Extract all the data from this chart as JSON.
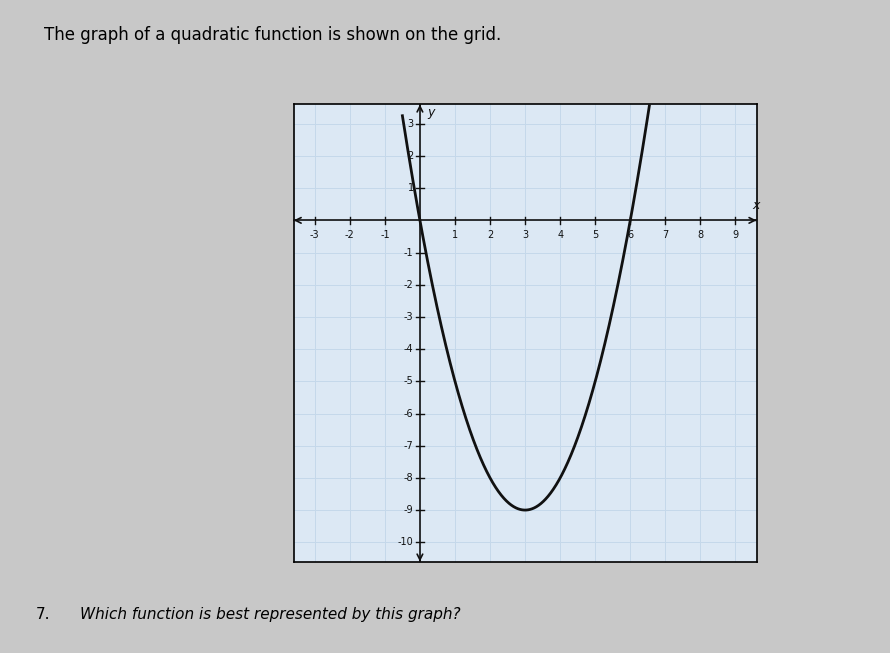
{
  "title": "The graph of a quadratic function is shown on the grid.",
  "question": "Which function is best represented by this graph?",
  "question_number": "7.",
  "parabola_a": 1,
  "parabola_b": -6,
  "parabola_c": 0,
  "vertex_x": 3,
  "vertex_y": -9,
  "x_min": -3,
  "x_max": 9,
  "y_min": -10,
  "y_max": 3,
  "x_ticks": [
    -3,
    -2,
    -1,
    1,
    2,
    3,
    4,
    5,
    6,
    7,
    8,
    9
  ],
  "y_ticks": [
    -10,
    -9,
    -8,
    -7,
    -6,
    -5,
    -4,
    -3,
    -2,
    -1,
    1,
    2,
    3
  ],
  "grid_color": "#c5d8ea",
  "background_color": "#dce8f4",
  "curve_color": "#111111",
  "axis_color": "#111111",
  "title_fontsize": 12,
  "fig_bg_color": "#c8c8c8"
}
